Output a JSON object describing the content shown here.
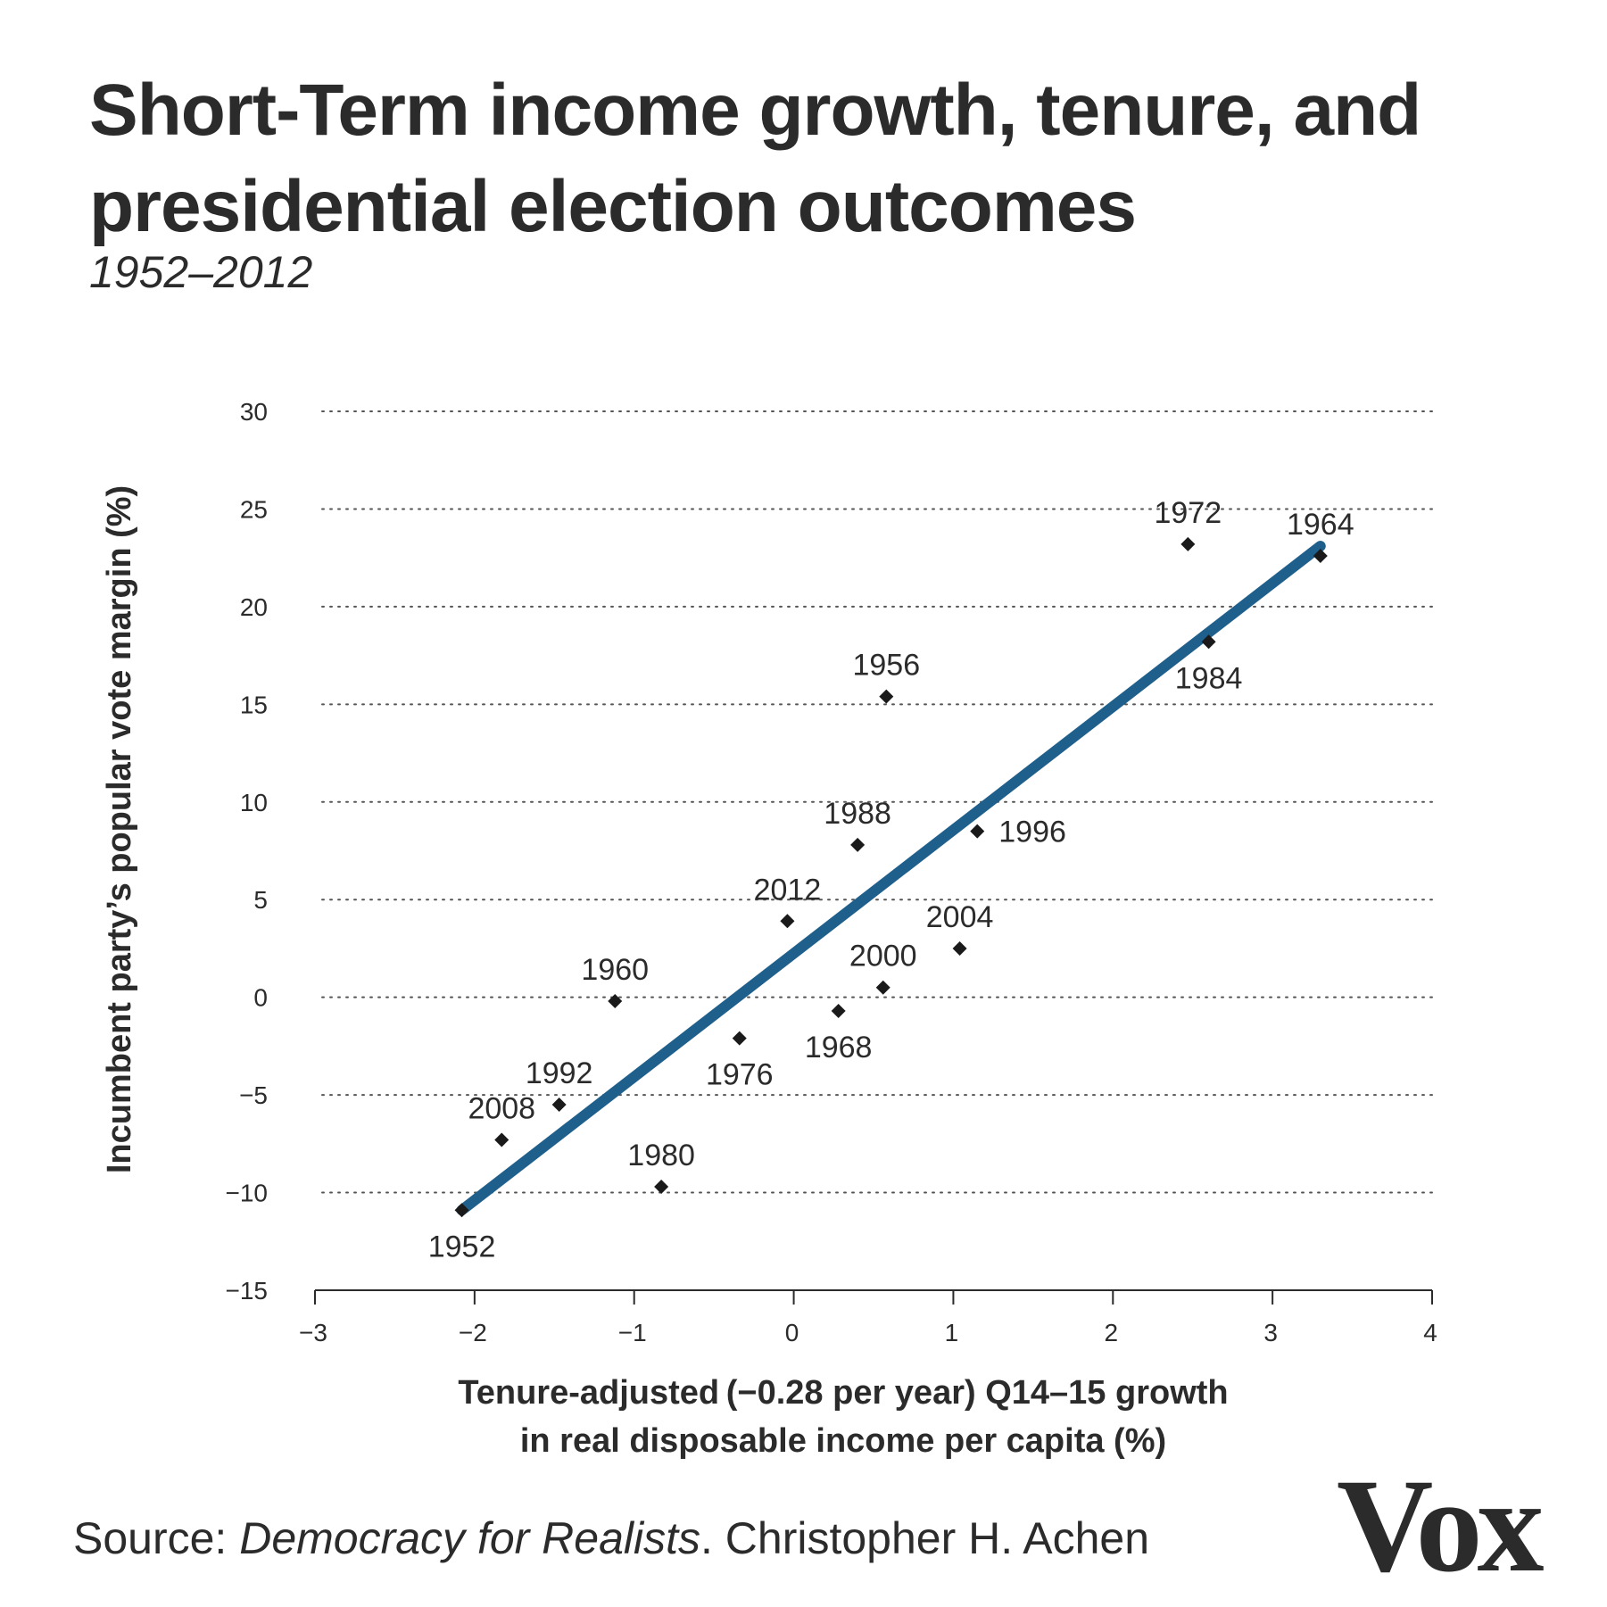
{
  "title": "Short-Term income growth, tenure, and presidential election outcomes",
  "subtitle": "1952–2012",
  "source": {
    "prefix": "Source: ",
    "work": "Democracy for Realists",
    "suffix": ". Christopher H. Achen"
  },
  "logo": "Vox",
  "colors": {
    "text": "#2b2b2b",
    "trend_line": "#1f5f8b",
    "marker": "#1a1a1a",
    "grid": "#555555"
  },
  "chart_data": {
    "type": "scatter",
    "xlabel_lines": [
      "Tenure-adjusted (−0.28 per year) Q14–15 growth",
      "in real disposable income per capita (%)"
    ],
    "ylabel": "Incumbent party’s popular vote margin (%)",
    "xlim": [
      -3,
      4
    ],
    "ylim": [
      -15,
      30
    ],
    "x_ticks": [
      -3,
      -2,
      -1,
      0,
      1,
      2,
      3,
      4
    ],
    "x_tick_labels": [
      "−3",
      "−2",
      "−1",
      "0",
      "1",
      "2",
      "3",
      "4"
    ],
    "y_ticks": [
      30,
      25,
      20,
      15,
      10,
      5,
      0,
      -5,
      -10,
      -15
    ],
    "y_tick_labels": [
      "30",
      "25",
      "20",
      "15",
      "10",
      "5",
      "0",
      "−5",
      "−10",
      "−15"
    ],
    "grid": "horizontal dotted",
    "points": [
      {
        "label": "1952",
        "x": -2.08,
        "y": -10.9,
        "label_pos": "below"
      },
      {
        "label": "1956",
        "x": 0.58,
        "y": 15.4,
        "label_pos": "above"
      },
      {
        "label": "1960",
        "x": -1.12,
        "y": -0.2,
        "label_pos": "above"
      },
      {
        "label": "1964",
        "x": 3.3,
        "y": 22.6,
        "label_pos": "above"
      },
      {
        "label": "1968",
        "x": 0.28,
        "y": -0.7,
        "label_pos": "below"
      },
      {
        "label": "1972",
        "x": 2.47,
        "y": 23.2,
        "label_pos": "above"
      },
      {
        "label": "1976",
        "x": -0.34,
        "y": -2.1,
        "label_pos": "below"
      },
      {
        "label": "1980",
        "x": -0.83,
        "y": -9.7,
        "label_pos": "above"
      },
      {
        "label": "1984",
        "x": 2.6,
        "y": 18.2,
        "label_pos": "below"
      },
      {
        "label": "1988",
        "x": 0.4,
        "y": 7.8,
        "label_pos": "above"
      },
      {
        "label": "1992",
        "x": -1.47,
        "y": -5.5,
        "label_pos": "above"
      },
      {
        "label": "1996",
        "x": 1.15,
        "y": 8.5,
        "label_pos": "right"
      },
      {
        "label": "2000",
        "x": 0.56,
        "y": 0.5,
        "label_pos": "above"
      },
      {
        "label": "2004",
        "x": 1.04,
        "y": 2.5,
        "label_pos": "above"
      },
      {
        "label": "2008",
        "x": -1.83,
        "y": -7.3,
        "label_pos": "above"
      },
      {
        "label": "2012",
        "x": -0.04,
        "y": 3.9,
        "label_pos": "above"
      }
    ],
    "trend_line": {
      "x": [
        -2.08,
        3.3
      ],
      "y": [
        -10.9,
        23.1
      ]
    }
  }
}
